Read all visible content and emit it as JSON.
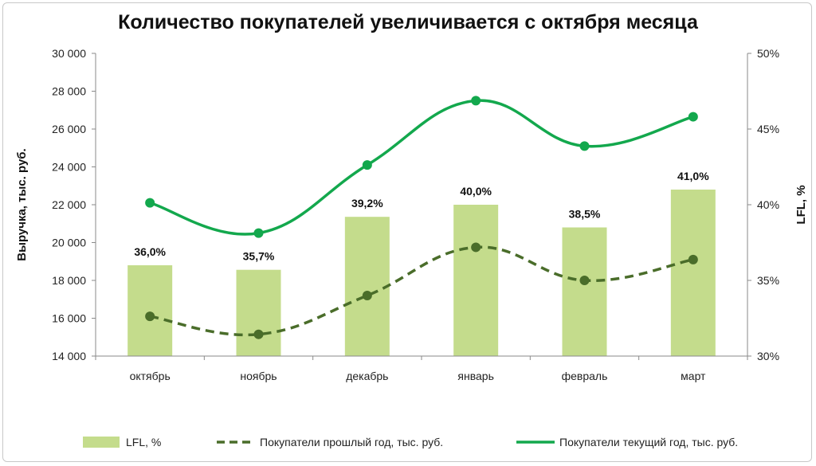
{
  "chart_data": {
    "type": "bar",
    "title": "Количество покупателей увеличивается с октября месяца",
    "categories": [
      "октябрь",
      "ноябрь",
      "декабрь",
      "январь",
      "февраль",
      "март"
    ],
    "y_left": {
      "label": "Выручка, тыс. руб.",
      "ylim": [
        14000,
        30000
      ],
      "ticks": [
        14000,
        16000,
        18000,
        20000,
        22000,
        24000,
        26000,
        28000,
        30000
      ],
      "tick_labels": [
        "14 000",
        "16 000",
        "18 000",
        "20 000",
        "22 000",
        "24 000",
        "26 000",
        "28 000",
        "30 000"
      ]
    },
    "y_right": {
      "label": "LFL, %",
      "ylim": [
        30,
        50
      ],
      "ticks": [
        30,
        35,
        40,
        45,
        50
      ],
      "tick_labels": [
        "30%",
        "35%",
        "40%",
        "45%",
        "50%"
      ]
    },
    "series": [
      {
        "name": "LFL, %",
        "kind": "bar",
        "axis": "right",
        "color": "#c4dc8c",
        "values": [
          36.0,
          35.7,
          39.2,
          40.0,
          38.5,
          41.0
        ],
        "labels": [
          "36,0%",
          "35,7%",
          "39,2%",
          "40,0%",
          "38,5%",
          "41,0%"
        ]
      },
      {
        "name": "Покупатели прошлый год, тыс. руб.",
        "kind": "line",
        "style": "dashed",
        "axis": "left",
        "color": "#4a6d2a",
        "values": [
          16100,
          15150,
          17200,
          19750,
          18000,
          19100
        ]
      },
      {
        "name": "Покупатели текущий год, тыс. руб.",
        "kind": "line",
        "style": "solid",
        "axis": "left",
        "color": "#13a84d",
        "values": [
          22100,
          20500,
          24100,
          27500,
          25100,
          26650
        ]
      }
    ],
    "grid": false,
    "legend_position": "bottom"
  }
}
